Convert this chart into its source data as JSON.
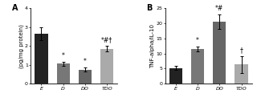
{
  "panel_A": {
    "title": "A",
    "ylabel": "(pg/mg protein)",
    "categories": [
      "E",
      "D",
      "DO",
      "TDO"
    ],
    "values": [
      2.65,
      1.05,
      0.75,
      1.85
    ],
    "errors": [
      0.35,
      0.12,
      0.1,
      0.15
    ],
    "bar_colors": [
      "#222222",
      "#777777",
      "#666666",
      "#aaaaaa"
    ],
    "ylim": [
      0,
      4
    ],
    "yticks": [
      0,
      1,
      2,
      3,
      4
    ],
    "annotations": [
      "",
      "*",
      "*",
      "*#†"
    ]
  },
  "panel_B": {
    "title": "B",
    "ylabel": "TNF-alpha/IL-10",
    "categories": [
      "E",
      "D",
      "DO",
      "TDO"
    ],
    "values": [
      5.2,
      11.5,
      20.5,
      6.3
    ],
    "errors": [
      0.6,
      0.9,
      2.5,
      2.8
    ],
    "bar_colors": [
      "#222222",
      "#777777",
      "#666666",
      "#aaaaaa"
    ],
    "ylim": [
      0,
      25
    ],
    "yticks": [
      0,
      5,
      10,
      15,
      20,
      25
    ],
    "annotations": [
      "",
      "*",
      "*#",
      "†"
    ]
  },
  "background_color": "#ffffff",
  "bar_width": 0.6,
  "fontsize_label": 5.0,
  "fontsize_tick": 4.5,
  "fontsize_annot": 5.5,
  "fontsize_title": 7
}
